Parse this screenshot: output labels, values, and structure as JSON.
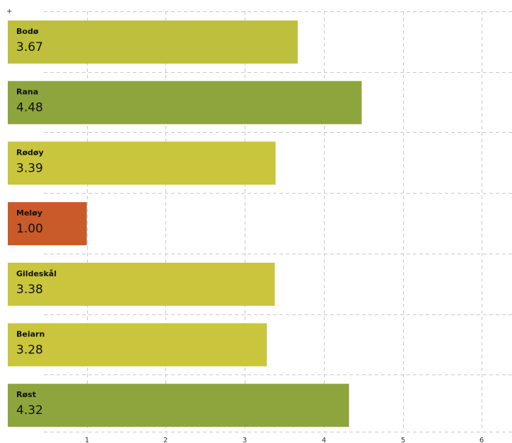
{
  "chart_data": {
    "type": "bar",
    "orientation": "horizontal",
    "categories": [
      "Bodø",
      "Rana",
      "Rødøy",
      "Meløy",
      "Gildeskål",
      "Beiarn",
      "Røst"
    ],
    "values": [
      3.67,
      4.48,
      3.39,
      1.0,
      3.38,
      3.28,
      4.32
    ],
    "value_labels": [
      "3.67",
      "4.48",
      "3.39",
      "1.00",
      "3.38",
      "3.28",
      "4.32"
    ],
    "bar_colors": [
      "#bdbf3d",
      "#8da53c",
      "#c9c53d",
      "#c95a29",
      "#c9c53d",
      "#c9c53d",
      "#8da53c"
    ],
    "title": "",
    "xlabel": "",
    "ylabel": "",
    "x_ticks": [
      1,
      2,
      3,
      4,
      5,
      6
    ],
    "x_tick_labels": [
      "1",
      "2",
      "3",
      "4",
      "5",
      "6"
    ],
    "xlim": [
      0,
      6.4
    ],
    "grid": true,
    "legend": "none",
    "corner_mark": "+"
  }
}
